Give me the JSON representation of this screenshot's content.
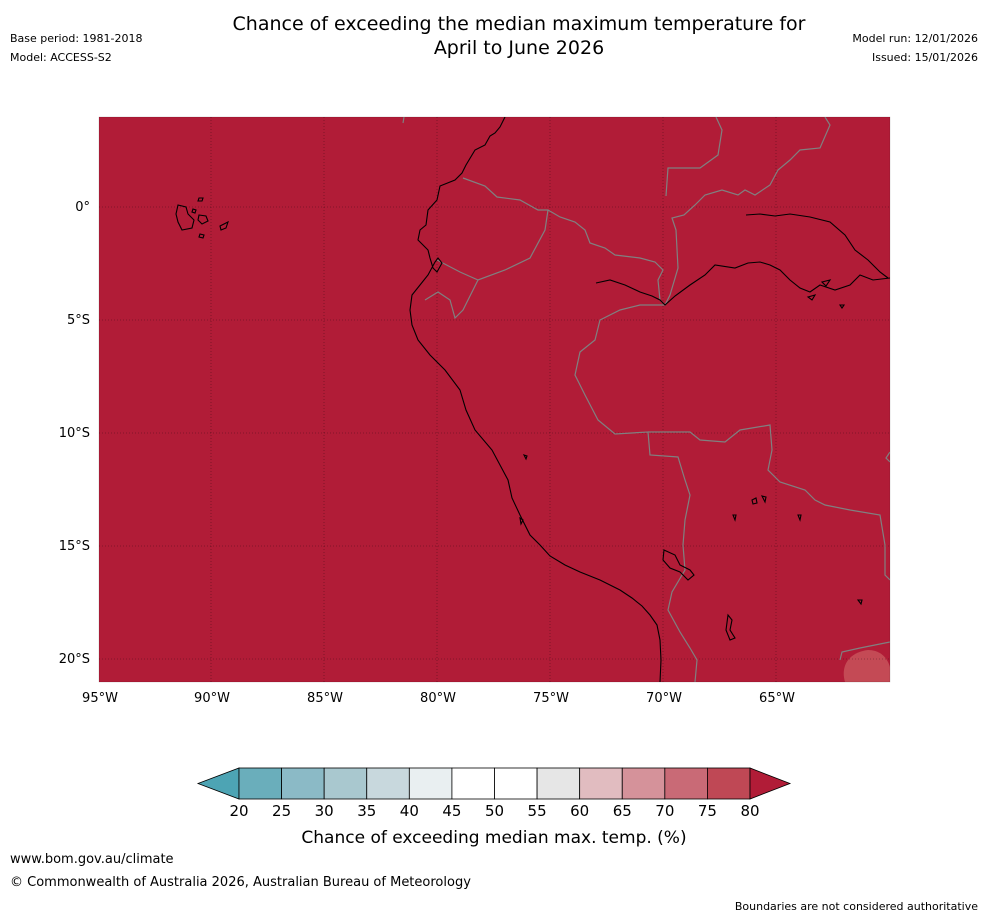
{
  "header": {
    "title_line1": "Chance of exceeding the median maximum temperature for",
    "title_line2": "April to June 2026",
    "base_period": "Base period: 1981-2018",
    "model": "Model: ACCESS-S2",
    "model_run": "Model run: 12/01/2026",
    "issued": "Issued: 15/01/2026"
  },
  "map": {
    "lon_labels": [
      "95°W",
      "90°W",
      "85°W",
      "80°W",
      "75°W",
      "70°W",
      "65°W"
    ],
    "lat_labels": [
      "0°",
      "5°S",
      "10°S",
      "15°S",
      "20°S"
    ],
    "fill_color": "#b11c37",
    "patch_color": "#c44a55",
    "coast_color": "#000000",
    "border_color": "#808080"
  },
  "colorbar": {
    "ticks": [
      "20",
      "25",
      "30",
      "35",
      "40",
      "45",
      "50",
      "55",
      "60",
      "65",
      "70",
      "75",
      "80"
    ],
    "colors": [
      "#4da4b4",
      "#6aaebb",
      "#8bbac6",
      "#a9c8cf",
      "#c8d8dd",
      "#e9eff1",
      "#ffffff",
      "#ffffff",
      "#e6e6e6",
      "#e1bcc0",
      "#d5929a",
      "#c96a76",
      "#bf4855",
      "#b11c37"
    ],
    "label": "Chance of exceeding median max. temp. (%)"
  },
  "footer": {
    "website": "www.bom.gov.au/climate",
    "copyright": "© Commonwealth of Australia 2026, Australian Bureau of Meteorology",
    "disclaimer": "Boundaries are not considered authoritative"
  }
}
